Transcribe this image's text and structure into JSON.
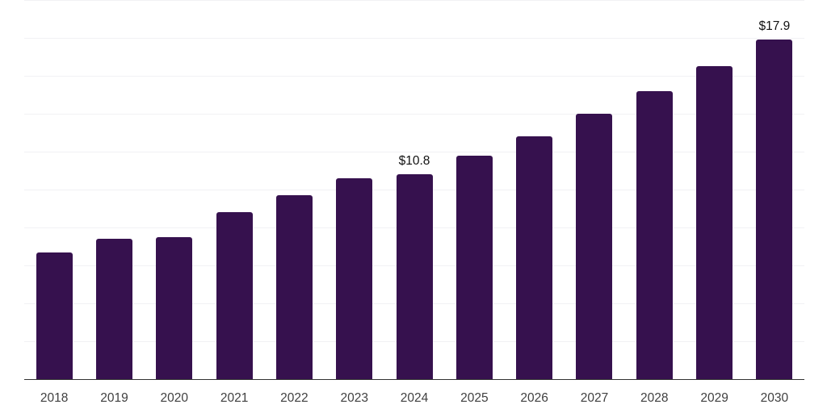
{
  "chart_data": {
    "type": "bar",
    "categories": [
      "2018",
      "2019",
      "2020",
      "2021",
      "2022",
      "2023",
      "2024",
      "2025",
      "2026",
      "2027",
      "2028",
      "2029",
      "2030"
    ],
    "values": [
      6.7,
      7.4,
      7.5,
      8.8,
      9.7,
      10.6,
      10.8,
      11.8,
      12.8,
      14.0,
      15.2,
      16.5,
      17.9
    ],
    "value_labels": {
      "2024": "$10.8",
      "2030": "$17.9"
    },
    "title": "",
    "xlabel": "",
    "ylabel": "",
    "ylim": [
      0,
      20
    ],
    "gridline_step": 2,
    "grid": "horizontal-only",
    "legend": "none",
    "bar_color": "#36114E",
    "axis_line_color": "#333333",
    "gridline_color": "#f1f1f4",
    "tick_label_color": "#404040",
    "value_label_color": "#111111"
  }
}
